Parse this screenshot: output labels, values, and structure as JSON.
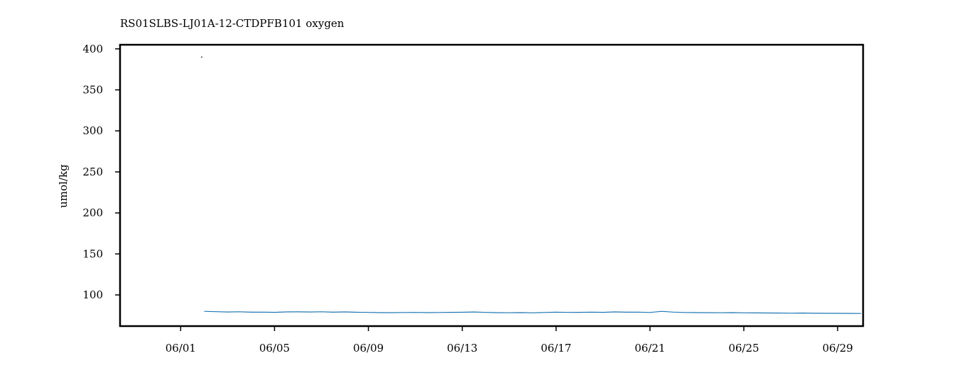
{
  "chart_data": {
    "type": "line",
    "title": "RS01SLBS-LJ01A-12-CTDPFB101 oxygen",
    "xlabel": "",
    "ylabel": "umol/kg",
    "x_type": "date",
    "xlim": [
      "2022-05-29T10:00",
      "2022-06-30T02:00"
    ],
    "ylim": [
      62,
      405
    ],
    "x_tick_labels": [
      "06/01",
      "06/05",
      "06/09",
      "06/13",
      "06/17",
      "06/21",
      "06/25",
      "06/29"
    ],
    "x_tick_dates": [
      "2022-06-01",
      "2022-06-05",
      "2022-06-09",
      "2022-06-13",
      "2022-06-17",
      "2022-06-21",
      "2022-06-25",
      "2022-06-29"
    ],
    "y_ticks": [
      100,
      150,
      200,
      250,
      300,
      350,
      400
    ],
    "grid": false,
    "line_color": "#1f77b4",
    "series": [
      {
        "name": "",
        "x": [
          "2022-06-02T00:00",
          "2022-06-02T12:00",
          "2022-06-03T00:00",
          "2022-06-03T12:00",
          "2022-06-04T00:00",
          "2022-06-04T12:00",
          "2022-06-05T00:00",
          "2022-06-05T12:00",
          "2022-06-06T00:00",
          "2022-06-06T12:00",
          "2022-06-07T00:00",
          "2022-06-07T12:00",
          "2022-06-08T00:00",
          "2022-06-08T12:00",
          "2022-06-09T00:00",
          "2022-06-09T12:00",
          "2022-06-10T00:00",
          "2022-06-10T12:00",
          "2022-06-11T00:00",
          "2022-06-11T12:00",
          "2022-06-12T00:00",
          "2022-06-12T12:00",
          "2022-06-13T00:00",
          "2022-06-13T12:00",
          "2022-06-14T00:00",
          "2022-06-14T12:00",
          "2022-06-15T00:00",
          "2022-06-15T12:00",
          "2022-06-16T00:00",
          "2022-06-16T12:00",
          "2022-06-17T00:00",
          "2022-06-17T12:00",
          "2022-06-18T00:00",
          "2022-06-18T12:00",
          "2022-06-19T00:00",
          "2022-06-19T12:00",
          "2022-06-20T00:00",
          "2022-06-20T12:00",
          "2022-06-21T00:00",
          "2022-06-21T12:00",
          "2022-06-22T00:00",
          "2022-06-22T12:00",
          "2022-06-23T00:00",
          "2022-06-23T12:00",
          "2022-06-24T00:00",
          "2022-06-24T12:00",
          "2022-06-25T00:00",
          "2022-06-25T12:00",
          "2022-06-26T00:00",
          "2022-06-26T12:00",
          "2022-06-27T00:00",
          "2022-06-27T12:00",
          "2022-06-28T00:00",
          "2022-06-28T12:00",
          "2022-06-29T00:00",
          "2022-06-29T12:00",
          "2022-06-30T00:00"
        ],
        "y": [
          80.0,
          79.6,
          79.2,
          79.5,
          79.0,
          79.1,
          78.8,
          79.3,
          79.4,
          79.2,
          79.5,
          79.0,
          79.3,
          78.9,
          78.7,
          78.5,
          78.4,
          78.6,
          78.7,
          78.5,
          78.6,
          78.8,
          78.9,
          79.2,
          78.7,
          78.4,
          78.3,
          78.5,
          78.2,
          78.6,
          79.0,
          78.7,
          78.8,
          79.0,
          78.8,
          79.3,
          79.0,
          79.1,
          78.6,
          80.0,
          79.1,
          78.6,
          78.5,
          78.4,
          78.3,
          78.5,
          78.2,
          78.1,
          78.0,
          77.9,
          77.8,
          77.9,
          77.7,
          77.6,
          77.6,
          77.5,
          77.4
        ]
      }
    ],
    "outliers": [
      {
        "x": "2022-06-01T21:30",
        "y": 390
      }
    ]
  }
}
